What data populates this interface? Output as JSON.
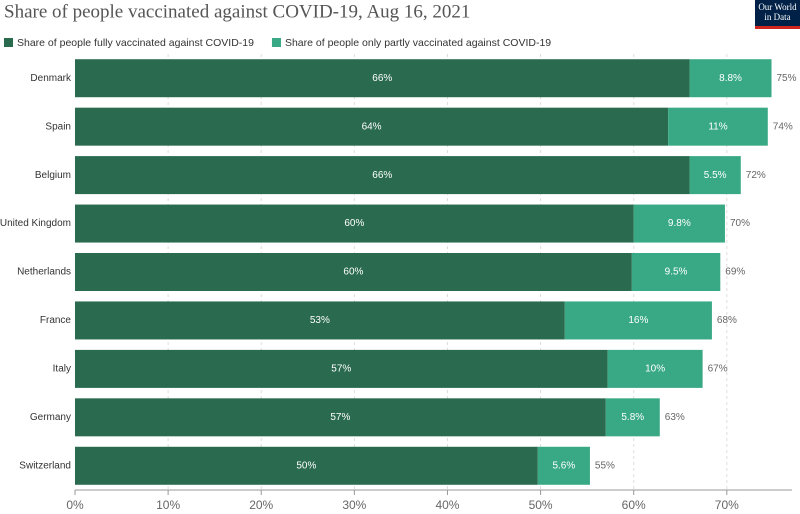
{
  "chart_data": {
    "type": "stacked-bar-horizontal",
    "title": "Share of people vaccinated against COVID-19, Aug 16, 2021",
    "logo": [
      "Our World",
      "in Data"
    ],
    "categories": [
      "Denmark",
      "Spain",
      "Belgium",
      "United Kingdom",
      "Netherlands",
      "France",
      "Italy",
      "Germany",
      "Switzerland"
    ],
    "series": [
      {
        "name": "Share of people fully vaccinated against COVID-19",
        "color": "#2a6a4f",
        "values": [
          66,
          63.7,
          66,
          60,
          59.8,
          52.6,
          57.2,
          57,
          49.7
        ],
        "value_labels": [
          "66%",
          "64%",
          "66%",
          "60%",
          "60%",
          "53%",
          "57%",
          "57%",
          "50%"
        ]
      },
      {
        "name": "Share of people only partly vaccinated against COVID-19",
        "color": "#38a984",
        "values": [
          8.8,
          10.7,
          5.5,
          9.8,
          9.5,
          15.8,
          10.2,
          5.8,
          5.6
        ],
        "value_labels": [
          "8.8%",
          "11%",
          "5.5%",
          "9.8%",
          "9.5%",
          "16%",
          "10%",
          "5.8%",
          "5.6%"
        ]
      }
    ],
    "totals": [
      75,
      74,
      72,
      70,
      69,
      68,
      67,
      63,
      55
    ],
    "total_labels": [
      "75%",
      "74%",
      "72%",
      "70%",
      "69%",
      "68%",
      "67%",
      "63%",
      "55%"
    ],
    "xlim": [
      0,
      77
    ],
    "xticks": [
      {
        "value": 0,
        "label": "0%"
      },
      {
        "value": 10,
        "label": "10%"
      },
      {
        "value": 20,
        "label": "20%"
      },
      {
        "value": 30,
        "label": "30%"
      },
      {
        "value": 40,
        "label": "40%"
      },
      {
        "value": 50,
        "label": "50%"
      },
      {
        "value": 60,
        "label": "60%"
      },
      {
        "value": 70,
        "label": "70%"
      }
    ],
    "grid": true
  }
}
